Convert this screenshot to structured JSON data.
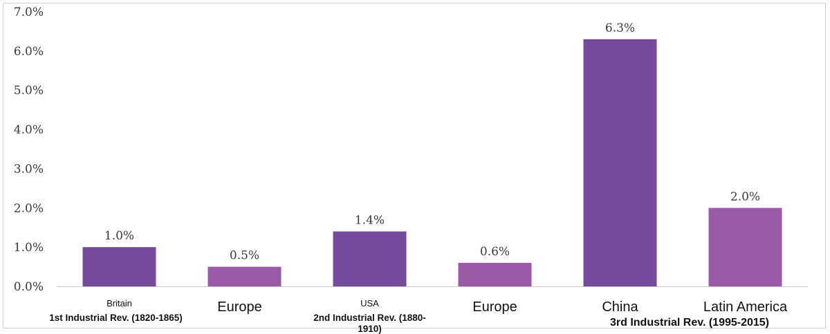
{
  "chart_data": {
    "type": "bar",
    "title": "",
    "xlabel": "",
    "ylabel": "",
    "ylim": [
      0,
      7
    ],
    "y_ticks": [
      "0.0%",
      "1.0%",
      "2.0%",
      "3.0%",
      "4.0%",
      "5.0%",
      "6.0%",
      "7.0%"
    ],
    "grid": false,
    "categories": [
      "Britain",
      "Europe",
      "USA",
      "Europe",
      "China",
      "Latin America"
    ],
    "values": [
      1.0,
      0.5,
      1.4,
      0.6,
      6.3,
      2.0
    ],
    "value_labels": [
      "1.0%",
      "0.5%",
      "1.4%",
      "0.6%",
      "6.3%",
      "2.0%"
    ],
    "groups": [
      {
        "label": "1st Industrial Rev. (1820-1865)",
        "categories": [
          "Britain",
          "Europe"
        ]
      },
      {
        "label": "2nd Industrial Rev. (1880-1910)",
        "label_lines": [
          "2nd Industrial Rev. (1880-",
          "1910)"
        ],
        "categories": [
          "USA",
          "Europe"
        ]
      },
      {
        "label": "3rd Industrial Rev. (1995-2015)",
        "categories": [
          "China",
          "Latin America"
        ]
      }
    ],
    "colors": {
      "leader": "#774b9c",
      "follower": "#9a5aa6",
      "axis": "#c8c8c8"
    }
  }
}
